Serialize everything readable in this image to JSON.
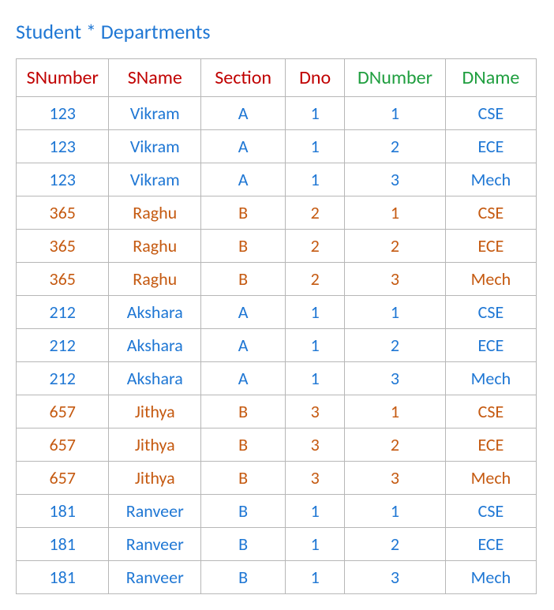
{
  "title": "Student * Departments",
  "title_color": "#1f77d4",
  "table": {
    "columns": [
      {
        "key": "snumber",
        "label": "SNumber",
        "header_color": "#c00000"
      },
      {
        "key": "sname",
        "label": "SName",
        "header_color": "#c00000"
      },
      {
        "key": "section",
        "label": "Section",
        "header_color": "#c00000"
      },
      {
        "key": "dno",
        "label": "Dno",
        "header_color": "#c00000"
      },
      {
        "key": "dnumber",
        "label": "DNumber",
        "header_color": "#1f9e3f"
      },
      {
        "key": "dname",
        "label": "DName",
        "header_color": "#1f9e3f"
      }
    ],
    "row_colors": {
      "blue": "#1f77d4",
      "orange": "#c55a11"
    },
    "rows": [
      {
        "color": "blue",
        "cells": [
          "123",
          "Vikram",
          "A",
          "1",
          "1",
          "CSE"
        ]
      },
      {
        "color": "blue",
        "cells": [
          "123",
          "Vikram",
          "A",
          "1",
          "2",
          "ECE"
        ]
      },
      {
        "color": "blue",
        "cells": [
          "123",
          "Vikram",
          "A",
          "1",
          "3",
          "Mech"
        ]
      },
      {
        "color": "orange",
        "cells": [
          "365",
          "Raghu",
          "B",
          "2",
          "1",
          "CSE"
        ]
      },
      {
        "color": "orange",
        "cells": [
          "365",
          "Raghu",
          "B",
          "2",
          "2",
          "ECE"
        ]
      },
      {
        "color": "orange",
        "cells": [
          "365",
          "Raghu",
          "B",
          "2",
          "3",
          "Mech"
        ]
      },
      {
        "color": "blue",
        "cells": [
          "212",
          "Akshara",
          "A",
          "1",
          "1",
          "CSE"
        ]
      },
      {
        "color": "blue",
        "cells": [
          "212",
          "Akshara",
          "A",
          "1",
          "2",
          "ECE"
        ]
      },
      {
        "color": "blue",
        "cells": [
          "212",
          "Akshara",
          "A",
          "1",
          "3",
          "Mech"
        ]
      },
      {
        "color": "orange",
        "cells": [
          "657",
          "Jithya",
          "B",
          "3",
          "1",
          "CSE"
        ]
      },
      {
        "color": "orange",
        "cells": [
          "657",
          "Jithya",
          "B",
          "3",
          "2",
          "ECE"
        ]
      },
      {
        "color": "orange",
        "cells": [
          "657",
          "Jithya",
          "B",
          "3",
          "3",
          "Mech"
        ]
      },
      {
        "color": "blue",
        "cells": [
          "181",
          "Ranveer",
          "B",
          "1",
          "1",
          "CSE"
        ]
      },
      {
        "color": "blue",
        "cells": [
          "181",
          "Ranveer",
          "B",
          "1",
          "2",
          "ECE"
        ]
      },
      {
        "color": "blue",
        "cells": [
          "181",
          "Ranveer",
          "B",
          "1",
          "3",
          "Mech"
        ]
      }
    ],
    "border_color": "#b7b7b7",
    "header_fontsize": 24,
    "cell_fontsize": 22
  }
}
